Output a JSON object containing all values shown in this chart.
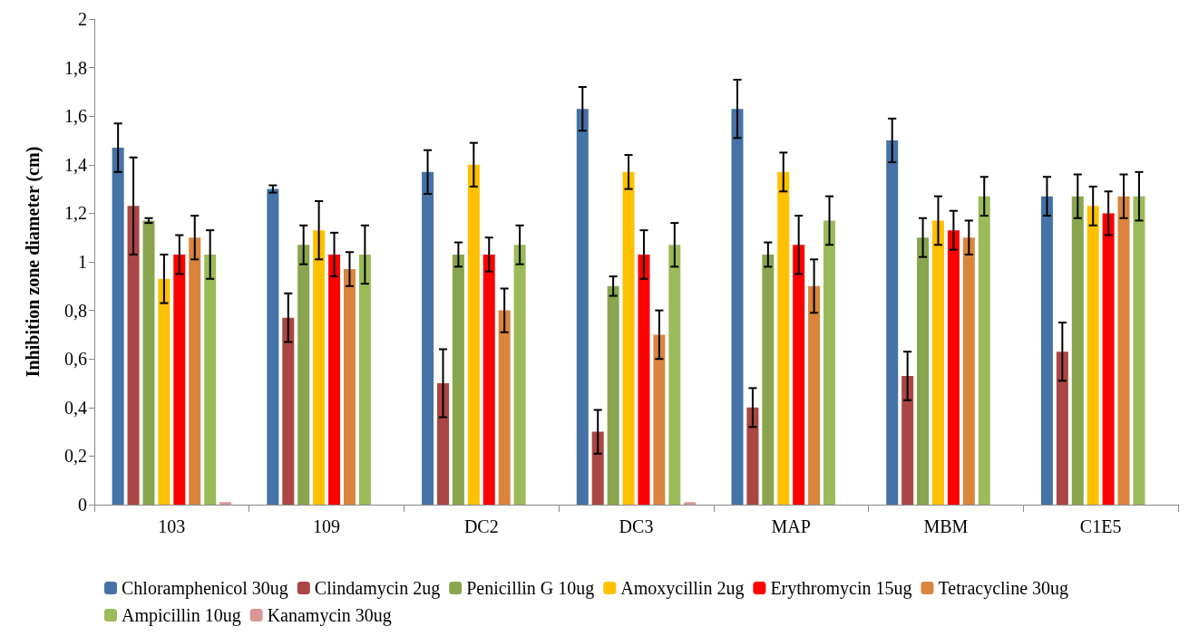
{
  "chart_data": {
    "type": "bar",
    "ylabel": "Inhibition zone diameter (cm)",
    "categories": [
      "103",
      "109",
      "DC2",
      "DC3",
      "MAP",
      "MBM",
      "C1E5"
    ],
    "series": [
      {
        "name": "Chloramphenicol 30ug",
        "color": "#4572a7",
        "values": [
          1.47,
          1.3,
          1.37,
          1.63,
          1.63,
          1.5,
          1.27
        ],
        "errors": [
          0.1,
          0.015,
          0.09,
          0.09,
          0.12,
          0.09,
          0.08
        ]
      },
      {
        "name": "Clindamycin 2ug",
        "color": "#aa4643",
        "values": [
          1.23,
          0.77,
          0.5,
          0.3,
          0.4,
          0.53,
          0.63
        ],
        "errors": [
          0.2,
          0.1,
          0.14,
          0.09,
          0.08,
          0.1,
          0.12
        ]
      },
      {
        "name": "Penicillin G 10ug",
        "color": "#89a54e",
        "values": [
          1.17,
          1.07,
          1.03,
          0.9,
          1.03,
          1.1,
          1.27
        ],
        "errors": [
          0.01,
          0.08,
          0.05,
          0.04,
          0.05,
          0.08,
          0.09
        ]
      },
      {
        "name": "Amoxycillin 2ug",
        "color": "#ffc000",
        "values": [
          0.93,
          1.13,
          1.4,
          1.37,
          1.37,
          1.17,
          1.23
        ],
        "errors": [
          0.1,
          0.12,
          0.09,
          0.07,
          0.08,
          0.1,
          0.08
        ]
      },
      {
        "name": "Erythromycin 15ug",
        "color": "#ff0000",
        "values": [
          1.03,
          1.03,
          1.03,
          1.03,
          1.07,
          1.13,
          1.2
        ],
        "errors": [
          0.08,
          0.09,
          0.07,
          0.1,
          0.12,
          0.08,
          0.09
        ]
      },
      {
        "name": "Tetracycline 30ug",
        "color": "#db843d",
        "values": [
          1.1,
          0.97,
          0.8,
          0.7,
          0.9,
          1.1,
          1.27
        ],
        "errors": [
          0.09,
          0.07,
          0.09,
          0.1,
          0.11,
          0.07,
          0.09
        ]
      },
      {
        "name": "Ampicillin 10ug",
        "color": "#9bbb59",
        "values": [
          1.03,
          1.03,
          1.07,
          1.07,
          1.17,
          1.27,
          1.27
        ],
        "errors": [
          0.1,
          0.12,
          0.08,
          0.09,
          0.1,
          0.08,
          0.1
        ]
      },
      {
        "name": "Kanamycin 30ug",
        "color": "#d99694",
        "values": [
          0.01,
          0,
          0,
          0.01,
          0,
          0,
          0
        ]
      }
    ],
    "ylim": [
      0,
      2
    ],
    "yticks": [
      0,
      {
        "value": 0.2,
        "label": "0,2"
      },
      {
        "value": 0.4,
        "label": "0,4"
      },
      {
        "value": 0.6,
        "label": "0,6"
      },
      {
        "value": 0.8,
        "label": "0,8"
      },
      1,
      {
        "value": 1.2,
        "label": "1,2"
      },
      {
        "value": 1.4,
        "label": "1,4"
      },
      {
        "value": 1.6,
        "label": "1,6"
      },
      {
        "value": 1.8,
        "label": "1,8"
      },
      2
    ],
    "grid": false,
    "legend": "bottom"
  }
}
